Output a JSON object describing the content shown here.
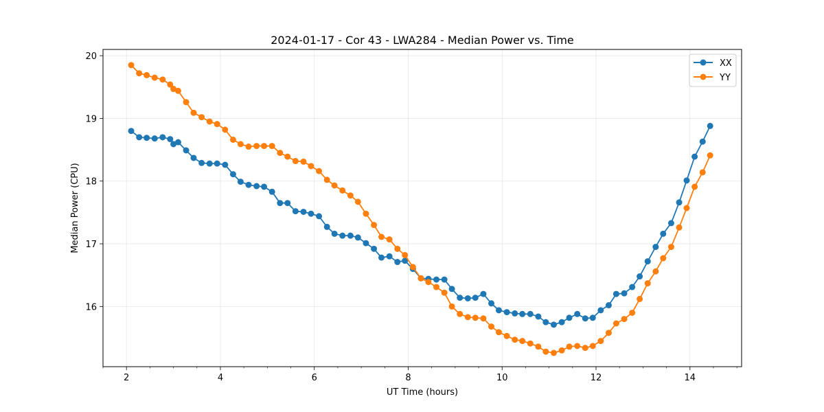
{
  "chart_data": {
    "type": "line",
    "title": "2024-01-17 - Cor 43 - LWA284 - Median Power vs. Time",
    "xlabel": "UT Time (hours)",
    "ylabel": "Median Power (CPU)",
    "xlim": [
      1.5,
      15.1
    ],
    "ylim": [
      15.04,
      20.1
    ],
    "xticks": [
      2,
      4,
      6,
      8,
      10,
      12,
      14
    ],
    "xtick_labels": [
      "2",
      "4",
      "6",
      "8",
      "10",
      "12",
      "14"
    ],
    "yticks": [
      16,
      17,
      18,
      19,
      20
    ],
    "ytick_labels": [
      "16",
      "17",
      "18",
      "19",
      "20"
    ],
    "grid": true,
    "legend_position": "top-right",
    "x": [
      2.1,
      2.27,
      2.43,
      2.6,
      2.77,
      2.93,
      3.0,
      3.1,
      3.27,
      3.43,
      3.6,
      3.77,
      3.93,
      4.1,
      4.27,
      4.43,
      4.6,
      4.77,
      4.93,
      5.1,
      5.27,
      5.43,
      5.6,
      5.77,
      5.93,
      6.1,
      6.27,
      6.43,
      6.6,
      6.77,
      6.93,
      7.1,
      7.27,
      7.43,
      7.6,
      7.77,
      7.93,
      8.1,
      8.27,
      8.43,
      8.6,
      8.77,
      8.93,
      9.1,
      9.27,
      9.43,
      9.6,
      9.77,
      9.93,
      10.1,
      10.27,
      10.43,
      10.6,
      10.77,
      10.93,
      11.1,
      11.27,
      11.43,
      11.6,
      11.77,
      11.93,
      12.1,
      12.27,
      12.43,
      12.6,
      12.77,
      12.93,
      13.1,
      13.27,
      13.43,
      13.6,
      13.77,
      13.93,
      14.1,
      14.27,
      14.43
    ],
    "series": [
      {
        "name": "XX",
        "color": "#1f77b4",
        "values": [
          18.8,
          18.7,
          18.69,
          18.68,
          18.7,
          18.67,
          18.59,
          18.62,
          18.49,
          18.37,
          18.29,
          18.28,
          18.28,
          18.26,
          18.11,
          17.99,
          17.94,
          17.92,
          17.91,
          17.83,
          17.65,
          17.65,
          17.52,
          17.51,
          17.48,
          17.44,
          17.27,
          17.16,
          17.13,
          17.13,
          17.1,
          17.01,
          16.92,
          16.78,
          16.8,
          16.71,
          16.73,
          16.6,
          16.45,
          16.44,
          16.43,
          16.43,
          16.28,
          16.14,
          16.13,
          16.14,
          16.2,
          16.05,
          15.94,
          15.91,
          15.89,
          15.88,
          15.88,
          15.84,
          15.75,
          15.71,
          15.75,
          15.82,
          15.88,
          15.81,
          15.82,
          15.94,
          16.02,
          16.2,
          16.21,
          16.31,
          16.48,
          16.72,
          16.95,
          17.16,
          17.33,
          17.66,
          18.01,
          18.39,
          18.63,
          18.88
        ]
      },
      {
        "name": "YY",
        "color": "#ff7f0e",
        "values": [
          19.85,
          19.72,
          19.69,
          19.65,
          19.62,
          19.54,
          19.47,
          19.44,
          19.26,
          19.09,
          19.02,
          18.95,
          18.91,
          18.82,
          18.66,
          18.59,
          18.55,
          18.56,
          18.56,
          18.56,
          18.45,
          18.39,
          18.32,
          18.31,
          18.24,
          18.16,
          18.02,
          17.93,
          17.85,
          17.77,
          17.67,
          17.48,
          17.3,
          17.11,
          17.07,
          16.92,
          16.82,
          16.63,
          16.45,
          16.39,
          16.31,
          16.22,
          16.0,
          15.88,
          15.83,
          15.82,
          15.81,
          15.68,
          15.59,
          15.53,
          15.47,
          15.45,
          15.41,
          15.36,
          15.28,
          15.26,
          15.3,
          15.36,
          15.37,
          15.34,
          15.37,
          15.45,
          15.58,
          15.73,
          15.8,
          15.9,
          16.12,
          16.37,
          16.56,
          16.77,
          16.95,
          17.26,
          17.57,
          17.91,
          18.14,
          18.41
        ]
      }
    ]
  }
}
